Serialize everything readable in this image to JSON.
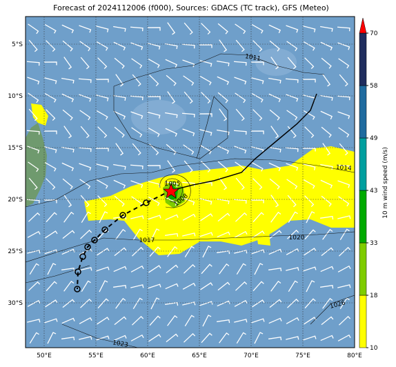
{
  "header": {
    "title": "Forecast of 2024112006 (f000), Sources: GDACS (TC track), GFS (Meteo)"
  },
  "map": {
    "lat_labels": [
      "5°S",
      "10°S",
      "15°S",
      "20°S",
      "25°S",
      "30°S"
    ],
    "lon_labels": [
      "50°E",
      "55°E",
      "60°E",
      "65°E",
      "70°E",
      "75°E",
      "80°E"
    ],
    "contour_labels": [
      "1011",
      "1014",
      "1005",
      "1008",
      "1017",
      "1020",
      "1026",
      "1023"
    ]
  },
  "colorbar": {
    "label": "10 m wind speed (m/s)",
    "ticks": [
      10,
      18,
      33,
      43,
      49,
      58,
      70
    ],
    "colors": [
      "#ffff00",
      "#7fcc00",
      "#00aa00",
      "#009f9f",
      "#1f6b9f",
      "#1f2d5e"
    ],
    "extend_color": "#ff0000"
  }
}
